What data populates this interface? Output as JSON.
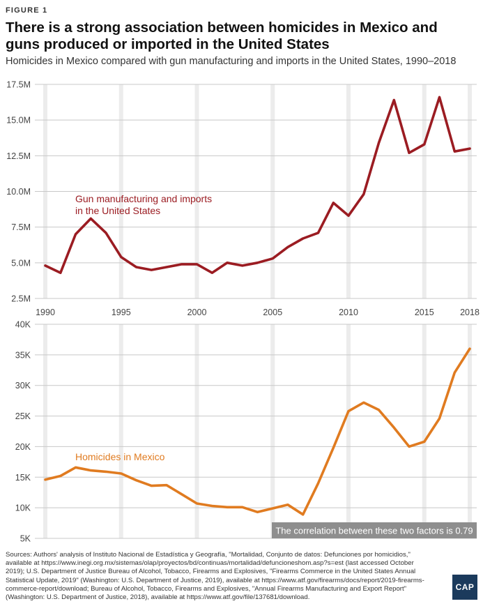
{
  "header": {
    "figure_label": "FIGURE 1",
    "title": "There is a strong association between homicides in Mexico and guns produced or imported in the United States",
    "subtitle": "Homicides in Mexico compared with gun manufacturing and imports in the United States, 1990–2018"
  },
  "chart_data": [
    {
      "type": "line",
      "series": [
        {
          "name": "Gun manufacturing and imports in the United States",
          "color": "#9b1c22",
          "values": [
            4.8,
            4.3,
            7.0,
            8.1,
            7.1,
            5.4,
            4.7,
            4.5,
            4.7,
            4.9,
            4.9,
            4.3,
            5.0,
            4.8,
            5.0,
            5.3,
            6.1,
            6.7,
            7.1,
            9.2,
            8.3,
            9.8,
            13.4,
            16.4,
            12.7,
            13.3,
            16.6,
            12.8,
            13.0
          ]
        }
      ],
      "x": [
        1990,
        1991,
        1992,
        1993,
        1994,
        1995,
        1996,
        1997,
        1998,
        1999,
        2000,
        2001,
        2002,
        2003,
        2004,
        2005,
        2006,
        2007,
        2008,
        2009,
        2010,
        2011,
        2012,
        2013,
        2014,
        2015,
        2016,
        2017,
        2018
      ],
      "x_ticks": [
        "1990",
        "1995",
        "2000",
        "2005",
        "2010",
        "2015",
        "2018"
      ],
      "y_ticks": [
        "17.5M",
        "15.0M",
        "12.5M",
        "10.0M",
        "7.5M",
        "5.0M",
        "2.5M"
      ],
      "y_tick_values": [
        17.5,
        15,
        12.5,
        10,
        7.5,
        5,
        2.5
      ],
      "ylim": [
        2.5,
        17.5
      ],
      "y_unit": "millions",
      "annotation": [
        "Gun manufacturing and imports",
        "in the United States"
      ]
    },
    {
      "type": "line",
      "series": [
        {
          "name": "Homicides in Mexico",
          "color": "#e07b20",
          "values": [
            14600,
            15200,
            16600,
            16100,
            15900,
            15600,
            14500,
            13600,
            13700,
            12200,
            10700,
            10300,
            10100,
            10100,
            9300,
            9900,
            10500,
            8900,
            14000,
            19800,
            25800,
            27200,
            26000,
            23100,
            20000,
            20800,
            24600,
            32100,
            36000
          ]
        }
      ],
      "x": [
        1990,
        1991,
        1992,
        1993,
        1994,
        1995,
        1996,
        1997,
        1998,
        1999,
        2000,
        2001,
        2002,
        2003,
        2004,
        2005,
        2006,
        2007,
        2008,
        2009,
        2010,
        2011,
        2012,
        2013,
        2014,
        2015,
        2016,
        2017,
        2018
      ],
      "y_ticks": [
        "40K",
        "35K",
        "30K",
        "25K",
        "20K",
        "15K",
        "10K",
        "5K"
      ],
      "y_tick_values": [
        40000,
        35000,
        30000,
        25000,
        20000,
        15000,
        10000,
        5000
      ],
      "ylim": [
        5000,
        40000
      ],
      "annotation": [
        "Homicides in Mexico"
      ]
    }
  ],
  "callout": "The correlation between these two factors is 0.79",
  "sources": "Sources: Authors' analysis of Instituto Nacional de Estadística y Geografía, \"Mortalidad, Conjunto de datos: Defunciones por homicidios,\" available at https://www.inegi.org.mx/sistemas/olap/proyectos/bd/continuas/mortalidad/defuncioneshom.asp?s=est (last accessed October 2019); U.S. Department of Justice Bureau of Alcohol, Tobacco, Firearms and Explosives, \"Firearms Commerce in the United States Annual Statistical Update, 2019\" (Washington: U.S. Department of Justice, 2019), available at https://www.atf.gov/firearms/docs/report/2019-firearms-commerce-report/download; Bureau of Alcohol, Tobacco, Firearms and Explosives, \"Annual Firearms Manufacturing and Export Report\" (Washington: U.S. Department of Justice, 2018), available at https://www.atf.gov/file/137681/download.",
  "logo": "CAP"
}
